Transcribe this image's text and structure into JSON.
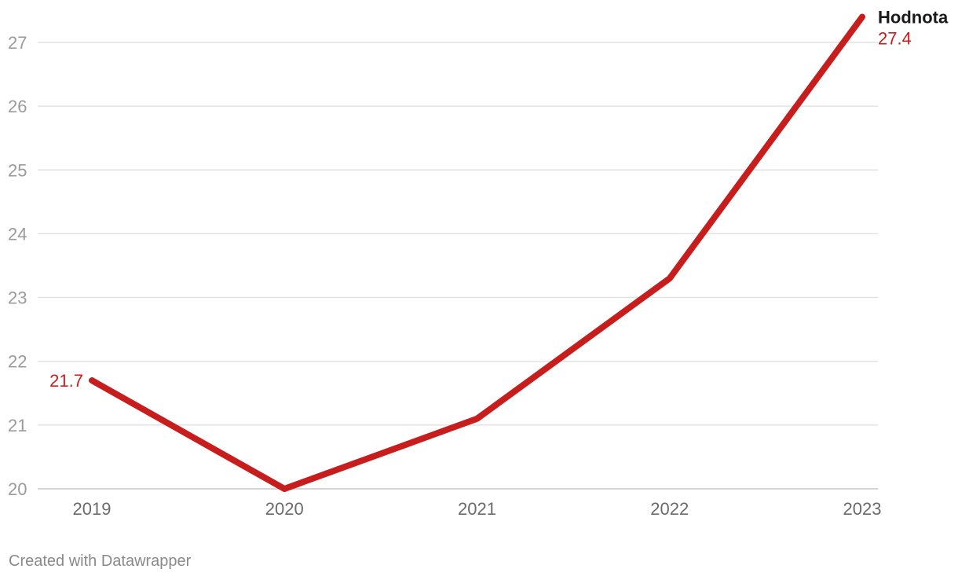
{
  "chart_data": {
    "type": "line",
    "title": "",
    "xlabel": "",
    "ylabel": "",
    "x": [
      "2019",
      "2020",
      "2021",
      "2022",
      "2023"
    ],
    "series": [
      {
        "name": "Hodnota",
        "values": [
          21.7,
          20.0,
          21.1,
          23.3,
          27.4
        ],
        "color": "#c71e1d"
      }
    ],
    "ylim": [
      20,
      27.4
    ],
    "yticks": [
      "20",
      "21",
      "22",
      "23",
      "24",
      "25",
      "26",
      "27"
    ],
    "grid": true,
    "data_labels": [
      {
        "point": 0,
        "text": "21.7",
        "side": "left"
      },
      {
        "point": 4,
        "text": "27.4",
        "side": "right"
      }
    ]
  },
  "footer": {
    "credit": "Created with Datawrapper"
  }
}
